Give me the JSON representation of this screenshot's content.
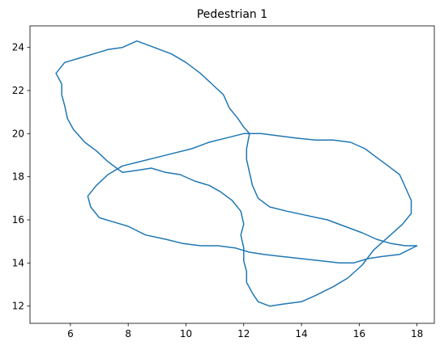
{
  "chart_data": {
    "type": "line",
    "title": "Pedestrian 1",
    "xlabel": "",
    "ylabel": "",
    "xlim": [
      4.6,
      18.6
    ],
    "ylim": [
      11.2,
      25.0
    ],
    "xticks": [
      6,
      8,
      10,
      12,
      14,
      16,
      18
    ],
    "yticks": [
      12,
      14,
      16,
      18,
      20,
      22,
      24
    ],
    "grid": false,
    "series": [
      {
        "color": "#1f77b4",
        "points": [
          [
            5.7,
            22.3
          ],
          [
            5.5,
            22.8
          ],
          [
            5.8,
            23.3
          ],
          [
            6.3,
            23.5
          ],
          [
            6.8,
            23.7
          ],
          [
            7.3,
            23.9
          ],
          [
            7.8,
            24.0
          ],
          [
            8.3,
            24.3
          ],
          [
            8.9,
            24.0
          ],
          [
            9.5,
            23.7
          ],
          [
            10.0,
            23.3
          ],
          [
            10.5,
            22.8
          ],
          [
            10.9,
            22.3
          ],
          [
            11.3,
            21.8
          ],
          [
            11.5,
            21.2
          ],
          [
            11.8,
            20.7
          ],
          [
            12.0,
            20.3
          ],
          [
            12.2,
            20.0
          ],
          [
            12.1,
            19.3
          ],
          [
            12.1,
            18.8
          ],
          [
            12.2,
            18.2
          ],
          [
            12.3,
            17.6
          ],
          [
            12.5,
            17.0
          ],
          [
            12.9,
            16.6
          ],
          [
            13.5,
            16.4
          ],
          [
            14.2,
            16.2
          ],
          [
            14.9,
            16.0
          ],
          [
            15.5,
            15.7
          ],
          [
            16.1,
            15.4
          ],
          [
            16.6,
            15.1
          ],
          [
            17.1,
            14.9
          ],
          [
            17.6,
            14.8
          ],
          [
            18.0,
            14.8
          ],
          [
            17.4,
            14.4
          ],
          [
            16.8,
            14.3
          ],
          [
            16.3,
            14.2
          ],
          [
            15.8,
            14.0
          ],
          [
            15.3,
            14.0
          ],
          [
            14.7,
            14.1
          ],
          [
            14.0,
            14.2
          ],
          [
            13.3,
            14.3
          ],
          [
            12.7,
            14.4
          ],
          [
            12.2,
            14.5
          ],
          [
            11.7,
            14.7
          ],
          [
            11.1,
            14.8
          ],
          [
            10.5,
            14.8
          ],
          [
            9.9,
            14.9
          ],
          [
            9.3,
            15.1
          ],
          [
            8.6,
            15.3
          ],
          [
            8.0,
            15.7
          ],
          [
            7.5,
            15.9
          ],
          [
            7.0,
            16.1
          ],
          [
            6.7,
            16.6
          ],
          [
            6.6,
            17.1
          ],
          [
            6.9,
            17.6
          ],
          [
            7.3,
            18.1
          ],
          [
            7.8,
            18.5
          ],
          [
            8.4,
            18.7
          ],
          [
            9.0,
            18.9
          ],
          [
            9.6,
            19.1
          ],
          [
            10.2,
            19.3
          ],
          [
            10.8,
            19.6
          ],
          [
            11.4,
            19.8
          ],
          [
            12.0,
            20.0
          ],
          [
            12.6,
            20.0
          ],
          [
            13.2,
            19.9
          ],
          [
            13.8,
            19.8
          ],
          [
            14.5,
            19.7
          ],
          [
            15.1,
            19.7
          ],
          [
            15.7,
            19.6
          ],
          [
            16.2,
            19.3
          ],
          [
            16.6,
            18.9
          ],
          [
            17.0,
            18.5
          ],
          [
            17.4,
            18.1
          ],
          [
            17.6,
            17.5
          ],
          [
            17.8,
            16.9
          ],
          [
            17.8,
            16.3
          ],
          [
            17.5,
            15.8
          ],
          [
            17.0,
            15.2
          ],
          [
            16.5,
            14.6
          ],
          [
            16.1,
            13.9
          ],
          [
            15.6,
            13.3
          ],
          [
            15.1,
            12.9
          ],
          [
            14.5,
            12.5
          ],
          [
            14.0,
            12.2
          ],
          [
            13.4,
            12.1
          ],
          [
            12.9,
            12.0
          ],
          [
            12.5,
            12.2
          ],
          [
            12.3,
            12.6
          ],
          [
            12.1,
            13.1
          ],
          [
            12.1,
            13.6
          ],
          [
            12.0,
            14.1
          ],
          [
            12.0,
            14.7
          ],
          [
            11.9,
            15.3
          ],
          [
            12.0,
            15.8
          ],
          [
            11.9,
            16.4
          ],
          [
            11.6,
            16.9
          ],
          [
            11.2,
            17.3
          ],
          [
            10.8,
            17.6
          ],
          [
            10.3,
            17.8
          ],
          [
            9.8,
            18.1
          ],
          [
            9.3,
            18.2
          ],
          [
            8.8,
            18.4
          ],
          [
            8.3,
            18.3
          ],
          [
            7.8,
            18.2
          ],
          [
            7.3,
            18.7
          ],
          [
            6.9,
            19.2
          ],
          [
            6.5,
            19.6
          ],
          [
            6.1,
            20.2
          ],
          [
            5.9,
            20.7
          ],
          [
            5.8,
            21.3
          ],
          [
            5.7,
            21.8
          ],
          [
            5.7,
            22.3
          ]
        ]
      }
    ]
  }
}
